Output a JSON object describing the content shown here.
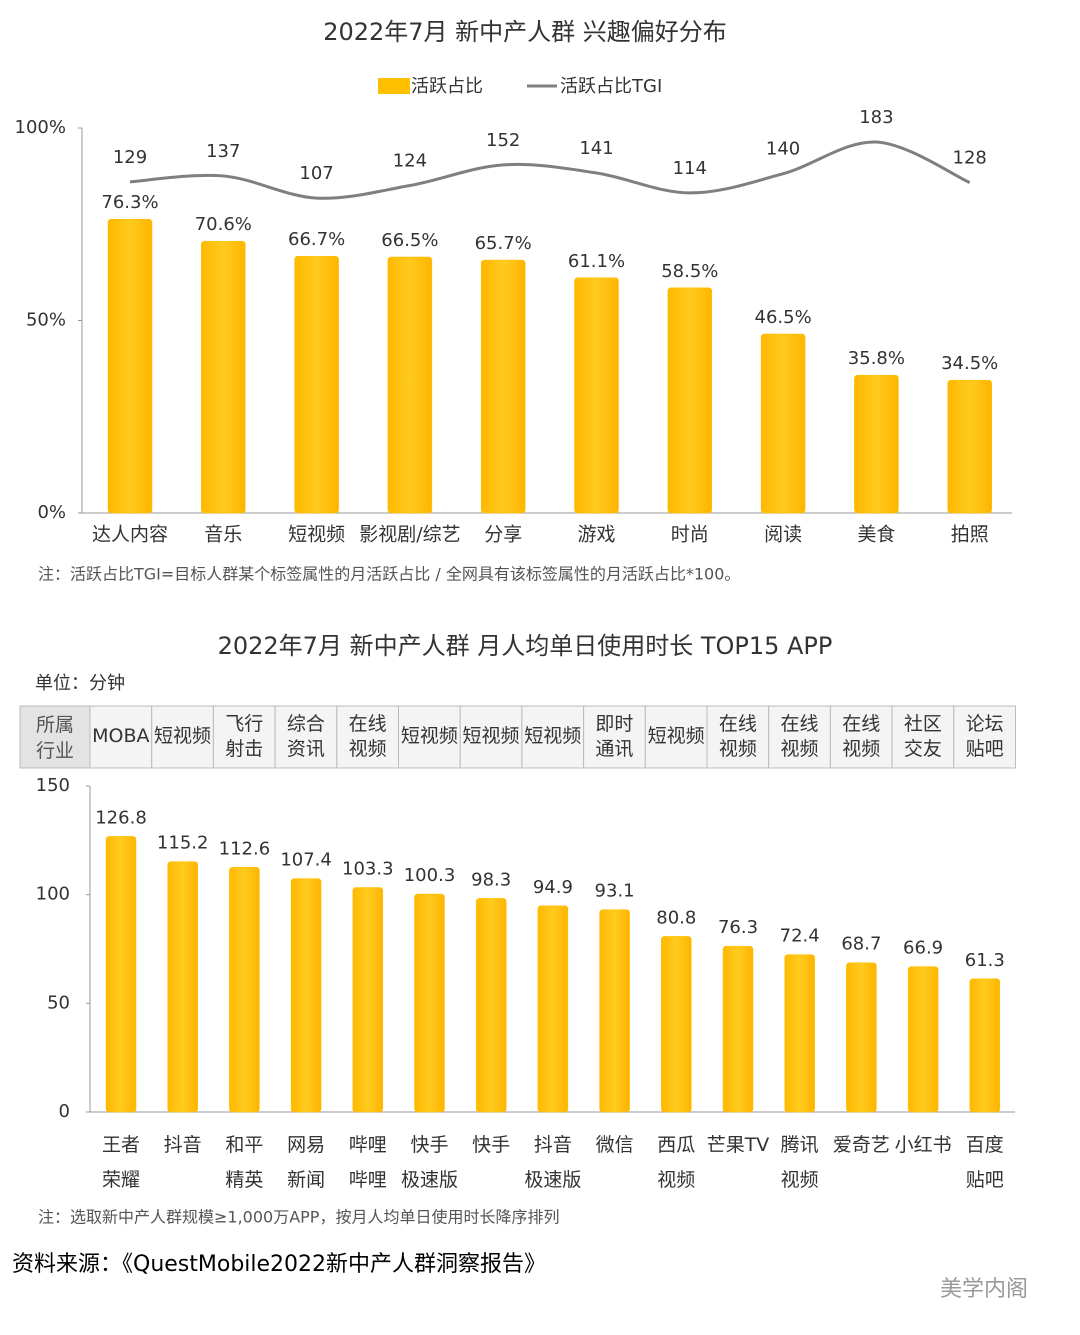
{
  "chart_data": [
    {
      "type": "bar",
      "title": "2022年7月 新中产人群 兴趣偏好分布",
      "categories": [
        "达人内容",
        "音乐",
        "短视频",
        "影视剧/综艺",
        "分享",
        "游戏",
        "时尚",
        "阅读",
        "美食",
        "拍照"
      ],
      "series": [
        {
          "name": "活跃占比",
          "type": "bar",
          "color": "#FFC000",
          "values": [
            76.3,
            70.6,
            66.7,
            66.5,
            65.7,
            61.1,
            58.5,
            46.5,
            35.8,
            34.5
          ],
          "value_labels": [
            "76.3%",
            "70.6%",
            "66.7%",
            "66.5%",
            "65.7%",
            "61.1%",
            "58.5%",
            "46.5%",
            "35.8%",
            "34.5%"
          ]
        },
        {
          "name": "活跃占比TGI",
          "type": "line",
          "axis": "y2",
          "color": "#7f7f7f",
          "values": [
            129,
            137,
            107,
            124,
            152,
            141,
            114,
            140,
            183,
            128
          ]
        }
      ],
      "ylim": [
        0,
        100
      ],
      "yticks": [
        {
          "value": 0,
          "label": "0%"
        },
        {
          "value": 50,
          "label": "50%"
        },
        {
          "value": 100,
          "label": "100%"
        }
      ],
      "y2lim": [
        -320,
        202
      ],
      "note": "注：活跃占比TGI=目标人群某个标签属性的月活跃占比 / 全网具有该标签属性的月活跃占比*100。"
    },
    {
      "type": "bar",
      "title": "2022年7月 新中产人群 月人均单日使用时长 TOP15 APP",
      "unit": "单位：分钟",
      "row_header": "所属\n行业",
      "industries": [
        "MOBA",
        "短视频",
        "飞行\n射击",
        "综合\n资讯",
        "在线\n视频",
        "短视频",
        "短视频",
        "短视频",
        "即时\n通讯",
        "短视频",
        "在线\n视频",
        "在线\n视频",
        "在线\n视频",
        "社区\n交友",
        "论坛\n贴吧"
      ],
      "categories": [
        "王者\n荣耀",
        "抖音",
        "和平\n精英",
        "网易\n新闻",
        "哔哩\n哔哩",
        "快手\n极速版",
        "快手",
        "抖音\n极速版",
        "微信",
        "西瓜\n视频",
        "芒果TV",
        "腾讯\n视频",
        "爱奇艺",
        "小红书",
        "百度\n贴吧"
      ],
      "values": [
        126.8,
        115.2,
        112.6,
        107.4,
        103.3,
        100.3,
        98.3,
        94.9,
        93.1,
        80.8,
        76.3,
        72.4,
        68.7,
        66.9,
        61.3
      ],
      "color": "#FFC000",
      "ylim": [
        0,
        150
      ],
      "yticks": [
        0,
        50,
        100,
        150
      ],
      "note": "注：选取新中产人群规模≥1,000万APP，按月人均单日使用时长降序排列"
    }
  ],
  "source": "资料来源：《QuestMobile2022新中产人群洞察报告》",
  "watermark": "美学内阁"
}
